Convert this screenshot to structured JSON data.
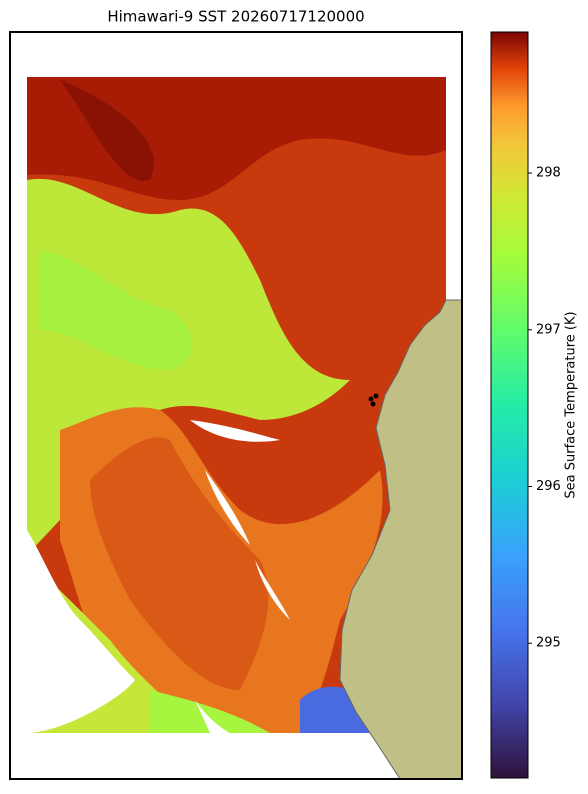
{
  "title": "Himawari-9 SST 20260717120000",
  "colorbar": {
    "label": "Sea Surface Temperature (K)",
    "lim": [
      294.14,
      298.9
    ],
    "ticks": [
      295,
      296,
      297,
      298
    ]
  }
}
